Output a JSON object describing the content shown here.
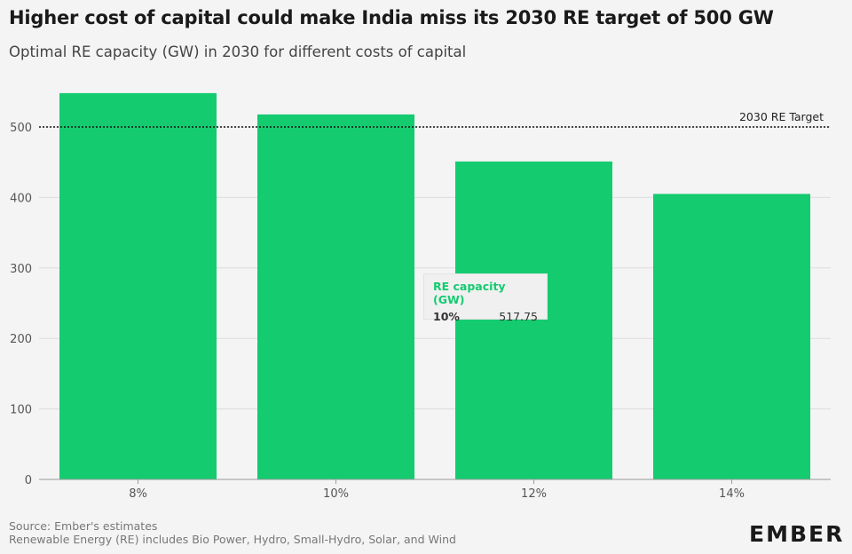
{
  "chart_data": {
    "type": "bar",
    "title": "Higher cost of capital could make India miss its 2030 RE target of 500 GW",
    "subtitle": "Optimal RE capacity (GW) in 2030 for different costs of capital",
    "categories": [
      "8%",
      "10%",
      "12%",
      "14%"
    ],
    "series": [
      {
        "name": "RE capacity (GW)",
        "values": [
          548,
          517.75,
          451,
          405
        ]
      }
    ],
    "ylim": [
      0,
      550
    ],
    "yticks": [
      "0",
      "100",
      "200",
      "300",
      "400",
      "500"
    ],
    "ytick_values": [
      0,
      100,
      200,
      300,
      400,
      500
    ],
    "reference_line": {
      "value": 500,
      "label": "2030 RE Target"
    },
    "bar_color": "#14cb70",
    "grid": true,
    "xlabel": "",
    "ylabel": ""
  },
  "tooltip": {
    "title": "RE capacity (GW)",
    "category": "10%",
    "value": "517.75"
  },
  "footer": {
    "source": "Source: Ember's estimates",
    "note": "Renewable Energy (RE) includes Bio Power, Hydro, Small-Hydro, Solar, and Wind"
  },
  "brand": {
    "logo_text": "EMBER",
    "logo_color": "#1a1a1a",
    "accent_color": "#14cb70"
  }
}
